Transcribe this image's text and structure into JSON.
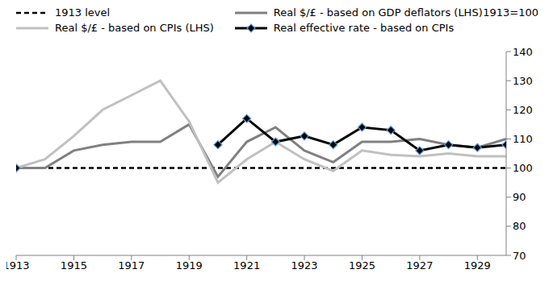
{
  "chart_data": {
    "type": "line",
    "annotations": [
      "1913=100"
    ],
    "x": [
      1913,
      1914,
      1915,
      1916,
      1917,
      1918,
      1919,
      1920,
      1921,
      1922,
      1923,
      1924,
      1925,
      1926,
      1927,
      1928,
      1929,
      1930
    ],
    "series": [
      {
        "name": "1913 level",
        "color": "#000000",
        "line_style": "dashed",
        "marker": "none",
        "values": [
          100,
          100,
          100,
          100,
          100,
          100,
          100,
          100,
          100,
          100,
          100,
          100,
          100,
          100,
          100,
          100,
          100,
          100
        ]
      },
      {
        "name": "Real $/£ - based on GDP deflators (LHS)",
        "color": "#808080",
        "line_style": "solid",
        "marker": "none",
        "values": [
          100,
          100,
          106,
          108,
          109,
          109,
          115,
          97,
          109,
          114,
          106,
          102,
          109,
          109,
          110,
          108,
          107,
          110
        ]
      },
      {
        "name": "Real $/£ - based on CPIs (LHS)",
        "color": "#c0c0c0",
        "line_style": "solid",
        "marker": "none",
        "values": [
          100,
          103,
          111,
          120,
          125,
          130,
          116,
          95,
          103,
          109,
          103,
          99,
          106,
          104.5,
          104,
          105,
          104,
          104
        ]
      },
      {
        "name": "Real effective rate - based on CPIs",
        "color": "#000000",
        "line_style": "solid",
        "marker": "diamond",
        "values": [
          100,
          null,
          null,
          null,
          null,
          null,
          null,
          108,
          117,
          109,
          111,
          108,
          114,
          113,
          106,
          108,
          107,
          108
        ]
      }
    ],
    "xlim": [
      1913,
      1930
    ],
    "xticks": [
      1913,
      1915,
      1917,
      1919,
      1921,
      1923,
      1925,
      1927,
      1929
    ],
    "ylim": [
      70,
      140
    ],
    "yticks": [
      70,
      80,
      90,
      100,
      110,
      120,
      130,
      140
    ],
    "grid": false,
    "legend": "top-left"
  }
}
